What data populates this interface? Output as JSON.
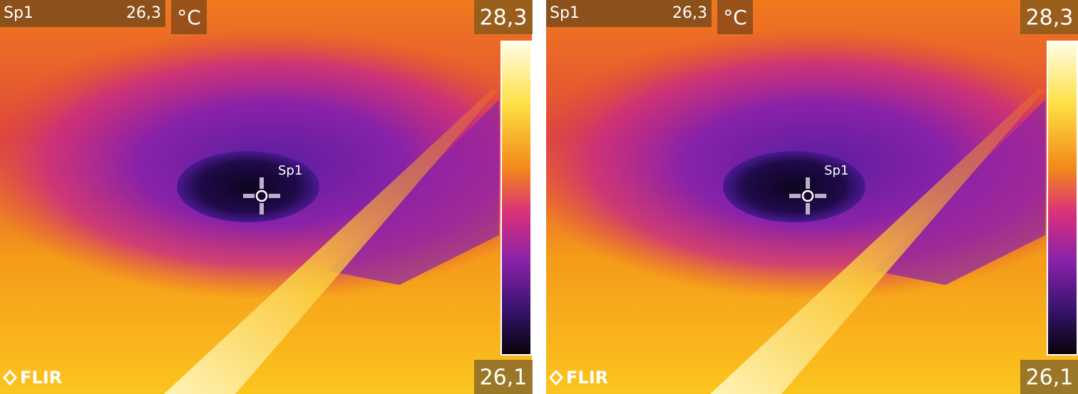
{
  "panels": [
    {
      "spot_label": "Sp1",
      "spot_value": "26,3",
      "unit": "°C",
      "scale_max": "28,3",
      "scale_min": "26,1",
      "marker_label": "Sp1",
      "logo": "FLIR"
    },
    {
      "spot_label": "Sp1",
      "spot_value": "26,3",
      "unit": "°C",
      "scale_max": "28,3",
      "scale_min": "26,1",
      "marker_label": "Sp1",
      "logo": "FLIR"
    }
  ]
}
